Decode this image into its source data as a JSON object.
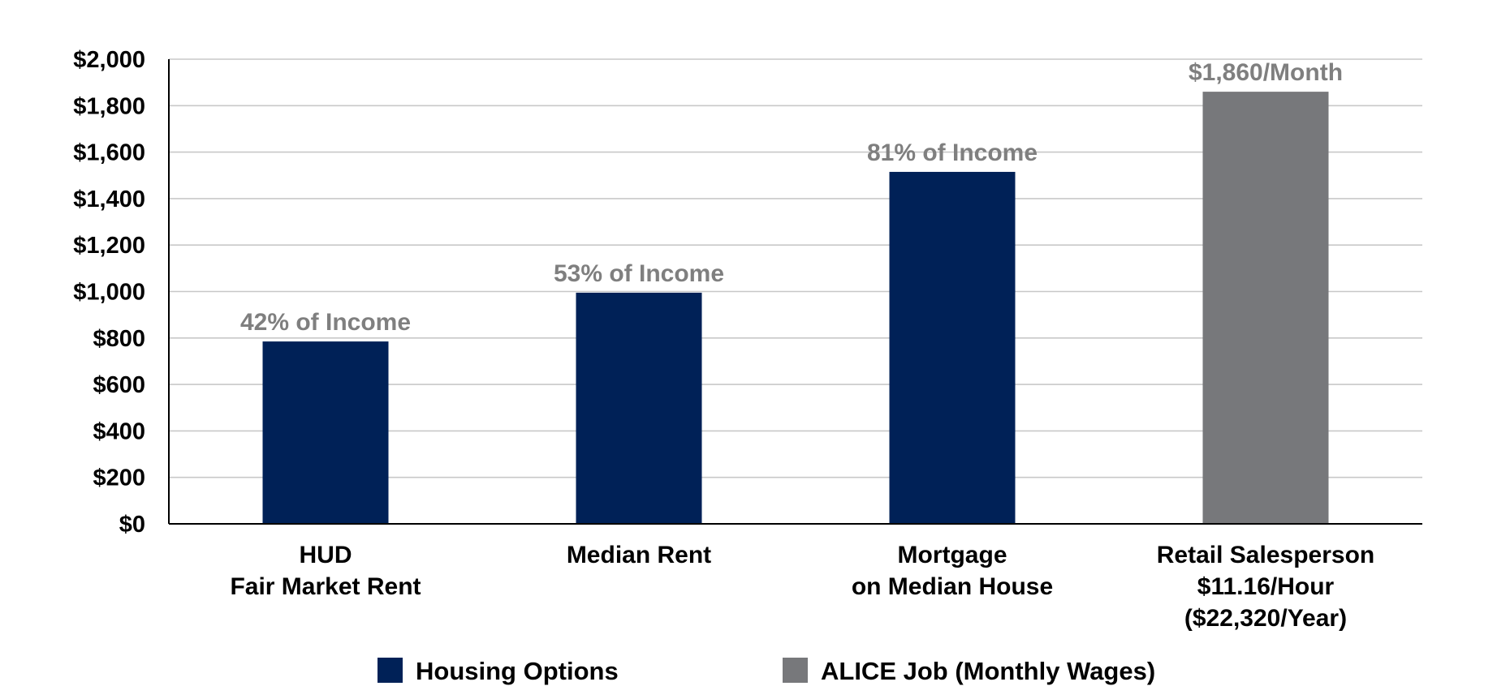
{
  "chart_data": {
    "type": "bar",
    "categories": [
      [
        "HUD",
        "Fair Market Rent"
      ],
      [
        "Median Rent"
      ],
      [
        "Mortgage",
        "on Median House"
      ],
      [
        "Retail Salesperson",
        "$11.16/Hour",
        "($22,320/Year)"
      ]
    ],
    "values": [
      785,
      995,
      1515,
      1860
    ],
    "series_index": [
      0,
      0,
      0,
      1
    ],
    "data_labels": [
      "42% of Income",
      "53% of Income",
      "81% of Income",
      "$1,860/Month"
    ],
    "y_ticks": [
      "$0",
      "$200",
      "$400",
      "$600",
      "$800",
      "$1,000",
      "$1,200",
      "$1,400",
      "$1,600",
      "$1,800",
      "$2,000"
    ],
    "ylim": [
      0,
      2000
    ],
    "y_step": 200,
    "grid": true,
    "legend_position": "bottom",
    "series": [
      {
        "name": "Housing Options",
        "color": "#002157"
      },
      {
        "name": "ALICE Job (Monthly Wages)",
        "color": "#77787b"
      }
    ]
  },
  "colors": {
    "data_label": "#7f7f7f",
    "gridline": "#c8c8c8",
    "text": "#000000"
  }
}
